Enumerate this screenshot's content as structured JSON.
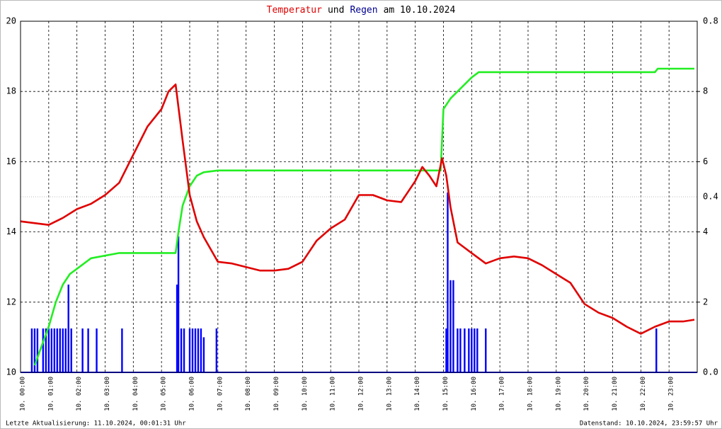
{
  "chart_data": {
    "type": "line",
    "title": [
      {
        "text": "Temperatur",
        "color": "#e00000"
      },
      {
        "text": "und",
        "color": "#000000"
      },
      {
        "text": "Regen",
        "color": "#000090"
      },
      {
        "text": "am 10.10.2024",
        "color": "#000000"
      }
    ],
    "footer_left": "Letzte Aktualisierung: 11.10.2024, 00:01:31 Uhr",
    "footer_right": "Datenstand: 10.10.2024, 23:59:57 Uhr",
    "xlim": [
      0,
      24
    ],
    "xticks": [
      {
        "value": 0,
        "label": "10. 00:00"
      },
      {
        "value": 1,
        "label": "10. 01:00"
      },
      {
        "value": 2,
        "label": "10. 02:00"
      },
      {
        "value": 3,
        "label": "10. 03:00"
      },
      {
        "value": 4,
        "label": "10. 04:00"
      },
      {
        "value": 5,
        "label": "10. 05:00"
      },
      {
        "value": 6,
        "label": "10. 06:00"
      },
      {
        "value": 7,
        "label": "10. 07:00"
      },
      {
        "value": 8,
        "label": "10. 08:00"
      },
      {
        "value": 9,
        "label": "10. 09:00"
      },
      {
        "value": 10,
        "label": "10. 10:00"
      },
      {
        "value": 11,
        "label": "10. 11:00"
      },
      {
        "value": 12,
        "label": "10. 12:00"
      },
      {
        "value": 13,
        "label": "10. 13:00"
      },
      {
        "value": 14,
        "label": "10. 14:00"
      },
      {
        "value": 15,
        "label": "10. 15:00"
      },
      {
        "value": 16,
        "label": "10. 16:00"
      },
      {
        "value": 17,
        "label": "10. 17:00"
      },
      {
        "value": 18,
        "label": "10. 18:00"
      },
      {
        "value": 19,
        "label": "10. 19:00"
      },
      {
        "value": 20,
        "label": "10. 20:00"
      },
      {
        "value": 21,
        "label": "10. 21:00"
      },
      {
        "value": 22,
        "label": "10. 22:00"
      },
      {
        "value": 23,
        "label": "10. 23:00"
      }
    ],
    "ylim": [
      10,
      20
    ],
    "yticks": [
      10,
      12,
      14,
      16,
      18,
      20
    ],
    "y2lim": [
      0,
      10
    ],
    "y2ticks": [
      2,
      4,
      6,
      8
    ],
    "y3lim": [
      0,
      0.8
    ],
    "y3ticks": [
      {
        "value": 0,
        "label": "0.0"
      },
      {
        "value": 0.4,
        "label": "0.4"
      },
      {
        "value": 0.8,
        "label": "0.8"
      }
    ],
    "grid": true,
    "series": [
      {
        "kind": "bar",
        "axis": "y3",
        "color": "#0000ff",
        "x": [
          0.4,
          0.5,
          0.6,
          0.8,
          0.9,
          1.0,
          1.1,
          1.2,
          1.3,
          1.4,
          1.5,
          1.6,
          1.7,
          1.8,
          2.2,
          2.4,
          2.7,
          3.6,
          5.55,
          5.6,
          5.7,
          5.8,
          6.0,
          6.1,
          6.2,
          6.3,
          6.4,
          6.5,
          6.95,
          15.1,
          15.15,
          15.25,
          15.35,
          15.5,
          15.6,
          15.75,
          15.9,
          16.0,
          16.1,
          16.2,
          16.5,
          22.55
        ],
        "values": [
          0.1,
          0.1,
          0.1,
          0.1,
          0.1,
          0.1,
          0.1,
          0.1,
          0.1,
          0.1,
          0.1,
          0.1,
          0.2,
          0.1,
          0.1,
          0.1,
          0.1,
          0.1,
          0.2,
          0.31,
          0.1,
          0.1,
          0.1,
          0.1,
          0.1,
          0.1,
          0.1,
          0.08,
          0.1,
          0.1,
          0.41,
          0.21,
          0.21,
          0.1,
          0.1,
          0.1,
          0.1,
          0.1,
          0.1,
          0.1,
          0.1,
          0.1
        ]
      },
      {
        "kind": "line",
        "axis": "y2",
        "color": "#22ee22",
        "x": [
          0.5,
          1,
          1.25,
          1.5,
          1.75,
          2,
          2.5,
          3.5,
          5.5,
          5.6,
          5.75,
          6,
          6.25,
          6.5,
          7,
          14.9,
          15,
          15.25,
          15.5,
          16,
          16.25,
          22.5,
          22.6,
          23.9
        ],
        "values": [
          0.2,
          1.3,
          2.0,
          2.5,
          2.8,
          2.95,
          3.25,
          3.4,
          3.4,
          4.0,
          4.75,
          5.3,
          5.6,
          5.7,
          5.75,
          5.75,
          7.5,
          7.8,
          8.0,
          8.4,
          8.55,
          8.55,
          8.65,
          8.65
        ]
      },
      {
        "kind": "line",
        "axis": "y",
        "color": "#e00000",
        "x": [
          0,
          0.5,
          1,
          1.5,
          2,
          2.5,
          3,
          3.5,
          4,
          4.5,
          5,
          5.25,
          5.5,
          5.75,
          6,
          6.25,
          6.5,
          7,
          7.5,
          8,
          8.5,
          9,
          9.5,
          10,
          10.5,
          11,
          11.5,
          12,
          12.5,
          13,
          13.5,
          14,
          14.25,
          14.5,
          14.75,
          14.95,
          15.1,
          15.25,
          15.5,
          16,
          16.5,
          17,
          17.5,
          18,
          18.5,
          19,
          19.5,
          20,
          20.5,
          21,
          21.5,
          22,
          22.5,
          23,
          23.5,
          23.9
        ],
        "values": [
          14.3,
          14.25,
          14.2,
          14.4,
          14.65,
          14.8,
          15.05,
          15.4,
          16.2,
          17.0,
          17.5,
          18.0,
          18.2,
          16.6,
          15.05,
          14.3,
          13.85,
          13.15,
          13.1,
          13.0,
          12.9,
          12.9,
          12.95,
          13.15,
          13.75,
          14.1,
          14.35,
          15.05,
          15.05,
          14.9,
          14.85,
          15.45,
          15.85,
          15.6,
          15.3,
          16.1,
          15.6,
          14.7,
          13.7,
          13.4,
          13.1,
          13.25,
          13.3,
          13.25,
          13.05,
          12.8,
          12.55,
          11.95,
          11.7,
          11.55,
          11.3,
          11.1,
          11.3,
          11.45,
          11.45,
          11.5
        ]
      }
    ]
  }
}
